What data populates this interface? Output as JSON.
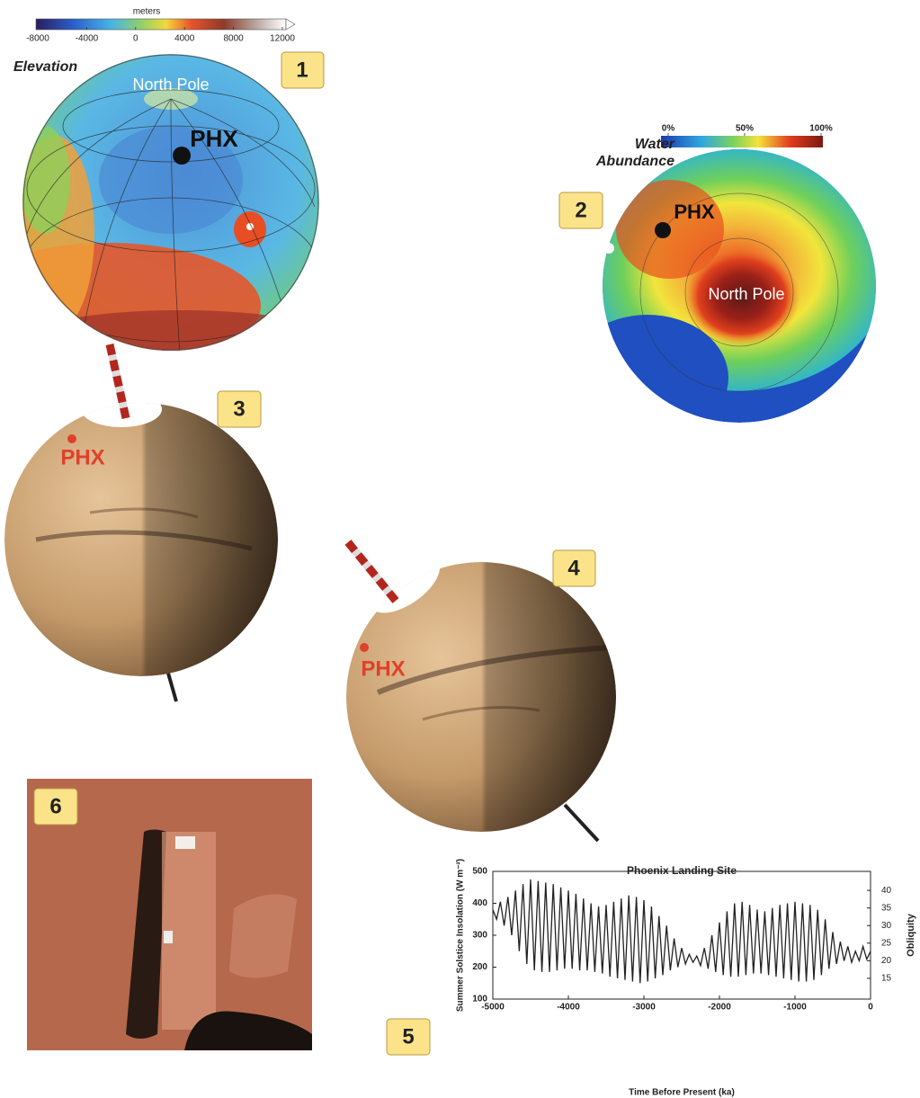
{
  "panels": {
    "p1": {
      "number": "1",
      "title": "Elevation",
      "colorbar": {
        "label": "meters",
        "range": [
          -8000,
          12000
        ],
        "ticks": [
          -8000,
          -4000,
          0,
          4000,
          8000,
          12000
        ]
      },
      "pole_label": "North Pole",
      "site_label": "PHX"
    },
    "p2": {
      "number": "2",
      "title_lines": [
        "Water",
        "Abundance"
      ],
      "colorbar": {
        "range": [
          0,
          100
        ],
        "ticks": [
          {
            "value": 0,
            "label": "0%"
          },
          {
            "value": 50,
            "label": "50%"
          },
          {
            "value": 100,
            "label": "100%"
          }
        ]
      },
      "pole_label": "North Pole",
      "site_label": "PHX"
    },
    "p3": {
      "number": "3",
      "site_label": "PHX"
    },
    "p4": {
      "number": "4",
      "site_label": "PHX"
    },
    "p5": {
      "number": "5"
    },
    "p6": {
      "number": "6"
    }
  },
  "chart_data": {
    "type": "line",
    "title": "Phoenix Landing Site",
    "x_label": "Time Before Present (ka)",
    "y_label": "Summer Solstice Insolation (W m⁻²)",
    "y2_label": "Obliquity",
    "color": "#222222",
    "xlim": [
      -5000,
      0
    ],
    "xticks": [
      -5000,
      -4000,
      -3000,
      -2000,
      -1000,
      0
    ],
    "ylim": [
      100,
      500
    ],
    "yticks": [
      100,
      200,
      300,
      400,
      500
    ],
    "y2lim": [
      9.1,
      45.4
    ],
    "y2ticks": [
      15,
      20,
      25,
      30,
      35,
      40
    ],
    "x": [
      -5000,
      -4950,
      -4900,
      -4850,
      -4800,
      -4750,
      -4700,
      -4650,
      -4600,
      -4550,
      -4500,
      -4450,
      -4400,
      -4350,
      -4300,
      -4250,
      -4200,
      -4150,
      -4100,
      -4050,
      -4000,
      -3950,
      -3900,
      -3850,
      -3800,
      -3750,
      -3700,
      -3650,
      -3600,
      -3550,
      -3500,
      -3450,
      -3400,
      -3350,
      -3300,
      -3250,
      -3200,
      -3150,
      -3100,
      -3050,
      -3000,
      -2950,
      -2900,
      -2850,
      -2800,
      -2750,
      -2700,
      -2650,
      -2600,
      -2550,
      -2500,
      -2450,
      -2400,
      -2350,
      -2300,
      -2250,
      -2200,
      -2150,
      -2100,
      -2050,
      -2000,
      -1950,
      -1900,
      -1850,
      -1800,
      -1750,
      -1700,
      -1650,
      -1600,
      -1550,
      -1500,
      -1450,
      -1400,
      -1350,
      -1300,
      -1250,
      -1200,
      -1150,
      -1100,
      -1050,
      -1000,
      -950,
      -900,
      -850,
      -800,
      -750,
      -700,
      -650,
      -600,
      -550,
      -500,
      -450,
      -400,
      -350,
      -300,
      -250,
      -200,
      -150,
      -100,
      -50,
      0
    ],
    "values": [
      380,
      350,
      405,
      330,
      420,
      300,
      440,
      250,
      460,
      210,
      475,
      190,
      470,
      185,
      465,
      185,
      460,
      190,
      450,
      195,
      440,
      195,
      430,
      190,
      415,
      190,
      400,
      185,
      390,
      180,
      395,
      170,
      405,
      165,
      415,
      160,
      425,
      155,
      420,
      150,
      410,
      155,
      390,
      165,
      360,
      175,
      330,
      190,
      290,
      200,
      260,
      210,
      240,
      215,
      235,
      205,
      260,
      195,
      300,
      185,
      340,
      175,
      375,
      170,
      400,
      170,
      405,
      175,
      395,
      180,
      380,
      180,
      375,
      175,
      385,
      170,
      395,
      165,
      400,
      160,
      405,
      155,
      400,
      155,
      395,
      160,
      380,
      175,
      350,
      195,
      310,
      210,
      280,
      220,
      265,
      215,
      250,
      220,
      265,
      225,
      250
    ]
  }
}
